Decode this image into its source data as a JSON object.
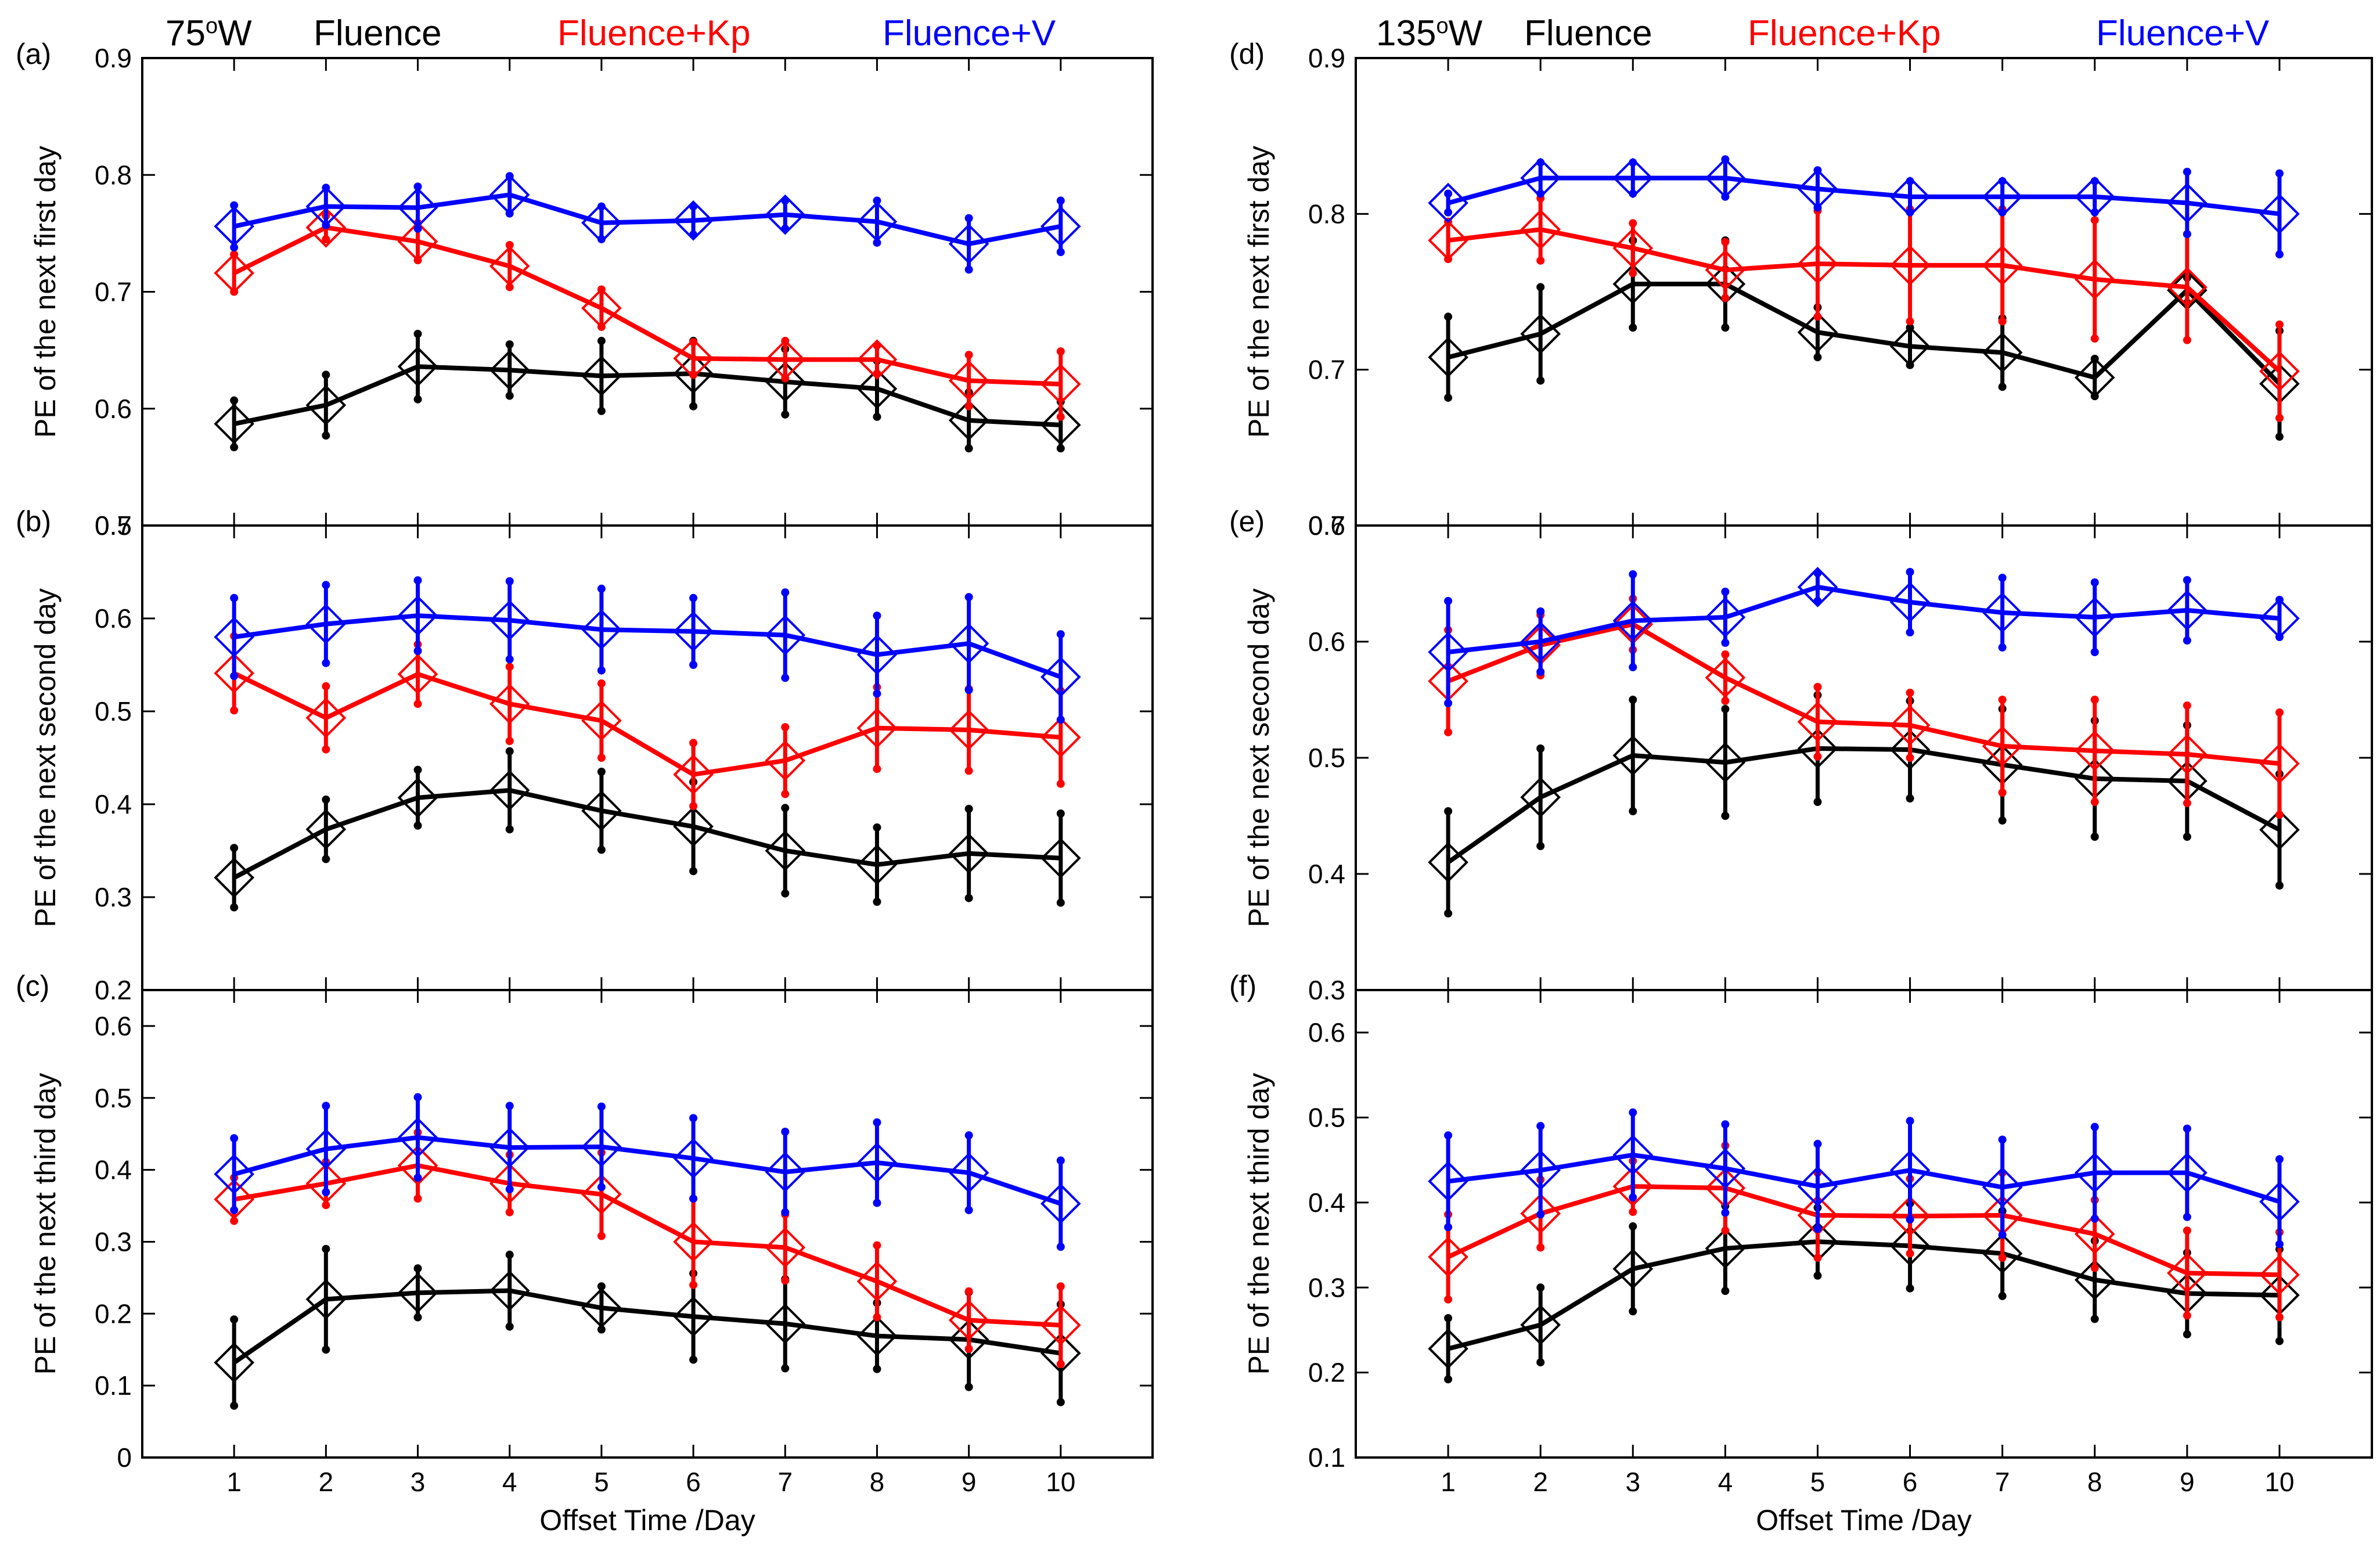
{
  "figure": {
    "columns": [
      {
        "location_label": "75",
        "location_sup": "o",
        "location_suffix": "W",
        "legend": [
          {
            "label": "Fluence",
            "color": "#000000"
          },
          {
            "label": "Fluence+Kp",
            "color": "#ff0000"
          },
          {
            "label": "Fluence+V",
            "color": "#0000ff"
          }
        ]
      },
      {
        "location_label": "135",
        "location_sup": "o",
        "location_suffix": "W",
        "legend": [
          {
            "label": "Fluence",
            "color": "#000000"
          },
          {
            "label": "Fluence+Kp",
            "color": "#ff0000"
          },
          {
            "label": "Fluence+V",
            "color": "#0000ff"
          }
        ]
      }
    ],
    "xlabels": [
      "Offset Time /Day",
      "Offset Time /Day"
    ]
  },
  "chart_data": [
    {
      "type": "line",
      "panel": "(a)",
      "column": 0,
      "row": 0,
      "ylabel": "PE of the next first day",
      "xlabel": "Offset Time /Day",
      "xlim": [
        0,
        11
      ],
      "ylim": [
        0.5,
        0.9
      ],
      "yticks": [
        0.5,
        0.6,
        0.7,
        0.8,
        0.9
      ],
      "categories": [
        1,
        2,
        3,
        4,
        5,
        6,
        7,
        8,
        9,
        10
      ],
      "series": [
        {
          "name": "Fluence",
          "color": "#000000",
          "values": [
            0.587,
            0.603,
            0.636,
            0.633,
            0.628,
            0.63,
            0.623,
            0.617,
            0.59,
            0.586
          ],
          "err": [
            0.02,
            0.026,
            0.028,
            0.022,
            0.03,
            0.028,
            0.028,
            0.024,
            0.024,
            0.02
          ]
        },
        {
          "name": "Fluence+Kp",
          "color": "#ff0000",
          "values": [
            0.716,
            0.755,
            0.743,
            0.722,
            0.686,
            0.643,
            0.642,
            0.642,
            0.624,
            0.621
          ],
          "err": [
            0.016,
            0.01,
            0.016,
            0.018,
            0.016,
            0.014,
            0.016,
            0.012,
            0.022,
            0.028
          ]
        },
        {
          "name": "Fluence+V",
          "color": "#0000ff",
          "values": [
            0.756,
            0.773,
            0.772,
            0.783,
            0.759,
            0.761,
            0.766,
            0.76,
            0.741,
            0.756
          ],
          "err": [
            0.018,
            0.016,
            0.018,
            0.016,
            0.014,
            0.012,
            0.012,
            0.018,
            0.022,
            0.022
          ]
        }
      ]
    },
    {
      "type": "line",
      "panel": "(b)",
      "column": 0,
      "row": 1,
      "ylabel": "PE of the next second day",
      "xlabel": "Offset Time /Day",
      "xlim": [
        0,
        11
      ],
      "ylim": [
        0.2,
        0.7
      ],
      "yticks": [
        0.2,
        0.3,
        0.4,
        0.5,
        0.6,
        0.7
      ],
      "categories": [
        1,
        2,
        3,
        4,
        5,
        6,
        7,
        8,
        9,
        10
      ],
      "series": [
        {
          "name": "Fluence",
          "color": "#000000",
          "values": [
            0.321,
            0.373,
            0.407,
            0.415,
            0.393,
            0.376,
            0.35,
            0.335,
            0.347,
            0.342
          ],
          "err": [
            0.032,
            0.032,
            0.03,
            0.042,
            0.042,
            0.048,
            0.046,
            0.04,
            0.048,
            0.048
          ]
        },
        {
          "name": "Fluence+Kp",
          "color": "#ff0000",
          "values": [
            0.541,
            0.493,
            0.54,
            0.508,
            0.49,
            0.432,
            0.447,
            0.482,
            0.48,
            0.472
          ],
          "err": [
            0.04,
            0.034,
            0.032,
            0.04,
            0.04,
            0.034,
            0.036,
            0.044,
            0.044,
            0.05
          ]
        },
        {
          "name": "Fluence+V",
          "color": "#0000ff",
          "values": [
            0.58,
            0.594,
            0.603,
            0.598,
            0.588,
            0.586,
            0.582,
            0.561,
            0.573,
            0.537
          ],
          "err": [
            0.042,
            0.042,
            0.038,
            0.042,
            0.044,
            0.036,
            0.046,
            0.042,
            0.05,
            0.046
          ]
        }
      ]
    },
    {
      "type": "line",
      "panel": "(c)",
      "column": 0,
      "row": 2,
      "ylabel": "PE of the next third day",
      "xlabel": "Offset Time /Day",
      "xlim": [
        0,
        11
      ],
      "ylim": [
        0,
        0.65
      ],
      "yticks": [
        0,
        0.1,
        0.2,
        0.3,
        0.4,
        0.5,
        0.6
      ],
      "categories": [
        1,
        2,
        3,
        4,
        5,
        6,
        7,
        8,
        9,
        10
      ],
      "series": [
        {
          "name": "Fluence",
          "color": "#000000",
          "values": [
            0.132,
            0.22,
            0.229,
            0.232,
            0.208,
            0.196,
            0.186,
            0.169,
            0.164,
            0.145
          ],
          "err": [
            0.06,
            0.07,
            0.034,
            0.05,
            0.03,
            0.06,
            0.062,
            0.046,
            0.066,
            0.068
          ]
        },
        {
          "name": "Fluence+Kp",
          "color": "#ff0000",
          "values": [
            0.359,
            0.381,
            0.406,
            0.381,
            0.366,
            0.3,
            0.292,
            0.245,
            0.191,
            0.184
          ],
          "err": [
            0.03,
            0.03,
            0.046,
            0.04,
            0.058,
            0.06,
            0.046,
            0.05,
            0.04,
            0.054
          ]
        },
        {
          "name": "Fluence+V",
          "color": "#0000ff",
          "values": [
            0.394,
            0.429,
            0.445,
            0.431,
            0.432,
            0.416,
            0.397,
            0.41,
            0.396,
            0.353
          ],
          "err": [
            0.05,
            0.06,
            0.056,
            0.058,
            0.056,
            0.056,
            0.056,
            0.056,
            0.052,
            0.06
          ]
        }
      ]
    },
    {
      "type": "line",
      "panel": "(d)",
      "column": 1,
      "row": 0,
      "ylabel": "PE of the next first day",
      "xlabel": "Offset Time /Day",
      "xlim": [
        0,
        11
      ],
      "ylim": [
        0.6,
        0.9
      ],
      "yticks": [
        0.6,
        0.7,
        0.8,
        0.9
      ],
      "categories": [
        1,
        2,
        3,
        4,
        5,
        6,
        7,
        8,
        9,
        10
      ],
      "series": [
        {
          "name": "Fluence",
          "color": "#000000",
          "values": [
            0.708,
            0.723,
            0.755,
            0.755,
            0.724,
            0.715,
            0.711,
            0.695,
            0.751,
            0.691
          ],
          "err": [
            0.026,
            0.03,
            0.028,
            0.028,
            0.016,
            0.012,
            0.022,
            0.012,
            0.008,
            0.034
          ]
        },
        {
          "name": "Fluence+Kp",
          "color": "#ff0000",
          "values": [
            0.783,
            0.79,
            0.778,
            0.764,
            0.768,
            0.767,
            0.767,
            0.758,
            0.753,
            0.699
          ],
          "err": [
            0.012,
            0.02,
            0.016,
            0.018,
            0.034,
            0.036,
            0.036,
            0.038,
            0.034,
            0.03
          ]
        },
        {
          "name": "Fluence+V",
          "color": "#0000ff",
          "values": [
            0.807,
            0.823,
            0.823,
            0.823,
            0.816,
            0.811,
            0.811,
            0.811,
            0.807,
            0.8
          ],
          "err": [
            0.006,
            0.01,
            0.01,
            0.012,
            0.012,
            0.01,
            0.01,
            0.01,
            0.02,
            0.026
          ]
        }
      ]
    },
    {
      "type": "line",
      "panel": "(e)",
      "column": 1,
      "row": 1,
      "ylabel": "PE of the next second day",
      "xlabel": "Offset Time /Day",
      "xlim": [
        0,
        11
      ],
      "ylim": [
        0.3,
        0.7
      ],
      "yticks": [
        0.3,
        0.4,
        0.5,
        0.6,
        0.7
      ],
      "categories": [
        1,
        2,
        3,
        4,
        5,
        6,
        7,
        8,
        9,
        10
      ],
      "series": [
        {
          "name": "Fluence",
          "color": "#000000",
          "values": [
            0.41,
            0.466,
            0.502,
            0.496,
            0.508,
            0.507,
            0.494,
            0.482,
            0.48,
            0.438
          ],
          "err": [
            0.044,
            0.042,
            0.048,
            0.046,
            0.046,
            0.042,
            0.048,
            0.05,
            0.048,
            0.048
          ]
        },
        {
          "name": "Fluence+Kp",
          "color": "#ff0000",
          "values": [
            0.566,
            0.597,
            0.615,
            0.569,
            0.531,
            0.528,
            0.51,
            0.506,
            0.503,
            0.495
          ],
          "err": [
            0.044,
            0.026,
            0.022,
            0.02,
            0.03,
            0.028,
            0.04,
            0.044,
            0.042,
            0.044
          ]
        },
        {
          "name": "Fluence+V",
          "color": "#0000ff",
          "values": [
            0.591,
            0.6,
            0.618,
            0.621,
            0.647,
            0.634,
            0.625,
            0.621,
            0.627,
            0.62
          ],
          "err": [
            0.044,
            0.026,
            0.04,
            0.022,
            0.012,
            0.026,
            0.03,
            0.03,
            0.026,
            0.016
          ]
        }
      ]
    },
    {
      "type": "line",
      "panel": "(f)",
      "column": 1,
      "row": 2,
      "ylabel": "PE of the next third day",
      "xlabel": "Offset Time /Day",
      "xlim": [
        0,
        11
      ],
      "ylim": [
        0.1,
        0.65
      ],
      "yticks": [
        0.1,
        0.2,
        0.3,
        0.4,
        0.5,
        0.6
      ],
      "categories": [
        1,
        2,
        3,
        4,
        5,
        6,
        7,
        8,
        9,
        10
      ],
      "series": [
        {
          "name": "Fluence",
          "color": "#000000",
          "values": [
            0.228,
            0.256,
            0.322,
            0.346,
            0.354,
            0.349,
            0.34,
            0.309,
            0.293,
            0.291
          ],
          "err": [
            0.036,
            0.044,
            0.05,
            0.05,
            0.04,
            0.05,
            0.05,
            0.046,
            0.048,
            0.054
          ]
        },
        {
          "name": "Fluence+Kp",
          "color": "#ff0000",
          "values": [
            0.336,
            0.387,
            0.419,
            0.417,
            0.385,
            0.384,
            0.385,
            0.363,
            0.317,
            0.315
          ],
          "err": [
            0.05,
            0.04,
            0.03,
            0.05,
            0.05,
            0.044,
            0.05,
            0.04,
            0.05,
            0.05
          ]
        },
        {
          "name": "Fluence+V",
          "color": "#0000ff",
          "values": [
            0.425,
            0.438,
            0.456,
            0.44,
            0.419,
            0.438,
            0.418,
            0.435,
            0.435,
            0.401
          ],
          "err": [
            0.054,
            0.052,
            0.05,
            0.052,
            0.05,
            0.058,
            0.056,
            0.054,
            0.052,
            0.05
          ]
        }
      ]
    }
  ]
}
